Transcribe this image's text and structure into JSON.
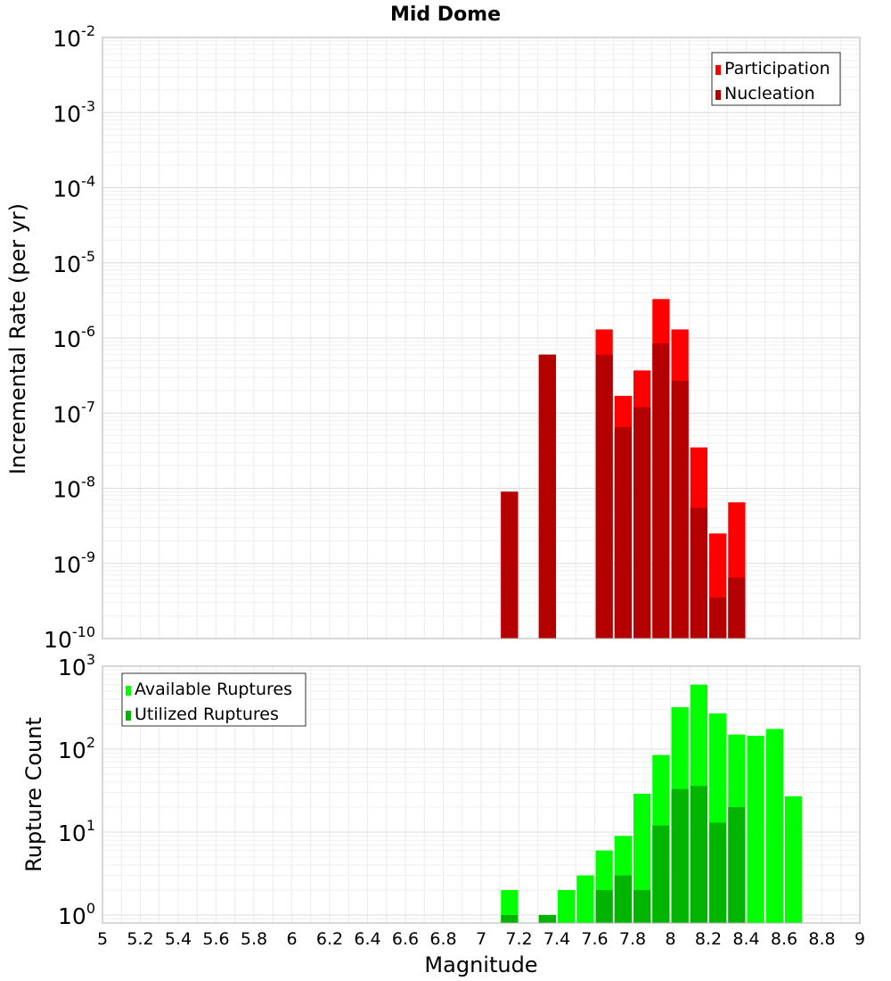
{
  "chart_data": [
    {
      "type": "bar",
      "title": "Mid Dome",
      "xlabel": "",
      "ylabel": "Incremental Rate (per yr)",
      "yscale": "log",
      "ylim": [
        1e-10,
        0.01
      ],
      "xlim": [
        5,
        9
      ],
      "y_ticks": [
        {
          "base": "10",
          "exp": "-10"
        },
        {
          "base": "10",
          "exp": "-9"
        },
        {
          "base": "10",
          "exp": "-8"
        },
        {
          "base": "10",
          "exp": "-7"
        },
        {
          "base": "10",
          "exp": "-6"
        },
        {
          "base": "10",
          "exp": "-5"
        },
        {
          "base": "10",
          "exp": "-4"
        },
        {
          "base": "10",
          "exp": "-3"
        },
        {
          "base": "10",
          "exp": "-2"
        }
      ],
      "grid": true,
      "legend_position": "top-right",
      "series": [
        {
          "name": "Participation",
          "color": "#ff0000",
          "points": [
            {
              "x": 7.15,
              "y": 9e-09
            },
            {
              "x": 7.35,
              "y": 6e-07
            },
            {
              "x": 7.65,
              "y": 1.3e-06
            },
            {
              "x": 7.75,
              "y": 1.7e-07
            },
            {
              "x": 7.85,
              "y": 3.7e-07
            },
            {
              "x": 7.95,
              "y": 3.3e-06
            },
            {
              "x": 8.05,
              "y": 1.3e-06
            },
            {
              "x": 8.15,
              "y": 3.5e-08
            },
            {
              "x": 8.25,
              "y": 2.5e-09
            },
            {
              "x": 8.35,
              "y": 6.5e-09
            }
          ]
        },
        {
          "name": "Nucleation",
          "color": "#b40000",
          "points": [
            {
              "x": 7.15,
              "y": 9e-09
            },
            {
              "x": 7.35,
              "y": 6e-07
            },
            {
              "x": 7.65,
              "y": 6e-07
            },
            {
              "x": 7.75,
              "y": 6.5e-08
            },
            {
              "x": 7.85,
              "y": 1.2e-07
            },
            {
              "x": 7.95,
              "y": 8.5e-07
            },
            {
              "x": 8.05,
              "y": 2.7e-07
            },
            {
              "x": 8.15,
              "y": 5.5e-09
            },
            {
              "x": 8.25,
              "y": 3.5e-10
            },
            {
              "x": 8.35,
              "y": 6.5e-10
            }
          ]
        }
      ]
    },
    {
      "type": "bar",
      "title": "",
      "xlabel": "Magnitude",
      "ylabel": "Rupture Count",
      "yscale": "log",
      "ylim": [
        0.8,
        1000
      ],
      "xlim": [
        5,
        9
      ],
      "x_ticks": [
        "5",
        "5.2",
        "5.4",
        "5.6",
        "5.8",
        "6",
        "6.2",
        "6.4",
        "6.6",
        "6.8",
        "7",
        "7.2",
        "7.4",
        "7.6",
        "7.8",
        "8",
        "8.2",
        "8.4",
        "8.6",
        "8.8",
        "9"
      ],
      "y_ticks": [
        {
          "base": "10",
          "exp": "0"
        },
        {
          "base": "10",
          "exp": "1"
        },
        {
          "base": "10",
          "exp": "2"
        },
        {
          "base": "10",
          "exp": "3"
        }
      ],
      "grid": true,
      "legend_position": "top-left",
      "series": [
        {
          "name": "Available Ruptures",
          "color": "#00ff00",
          "points": [
            {
              "x": 7.15,
              "y": 2
            },
            {
              "x": 7.35,
              "y": 1
            },
            {
              "x": 7.45,
              "y": 2
            },
            {
              "x": 7.55,
              "y": 3
            },
            {
              "x": 7.65,
              "y": 6
            },
            {
              "x": 7.75,
              "y": 9
            },
            {
              "x": 7.85,
              "y": 29
            },
            {
              "x": 7.95,
              "y": 85
            },
            {
              "x": 8.05,
              "y": 320
            },
            {
              "x": 8.15,
              "y": 600
            },
            {
              "x": 8.25,
              "y": 270
            },
            {
              "x": 8.35,
              "y": 150
            },
            {
              "x": 8.45,
              "y": 145
            },
            {
              "x": 8.55,
              "y": 175
            },
            {
              "x": 8.65,
              "y": 27
            }
          ]
        },
        {
          "name": "Utilized Ruptures",
          "color": "#00b400",
          "points": [
            {
              "x": 7.15,
              "y": 1
            },
            {
              "x": 7.35,
              "y": 1
            },
            {
              "x": 7.65,
              "y": 2
            },
            {
              "x": 7.75,
              "y": 3
            },
            {
              "x": 7.85,
              "y": 2
            },
            {
              "x": 7.95,
              "y": 12
            },
            {
              "x": 8.05,
              "y": 33
            },
            {
              "x": 8.15,
              "y": 36
            },
            {
              "x": 8.25,
              "y": 13
            },
            {
              "x": 8.35,
              "y": 20
            }
          ]
        }
      ]
    }
  ]
}
